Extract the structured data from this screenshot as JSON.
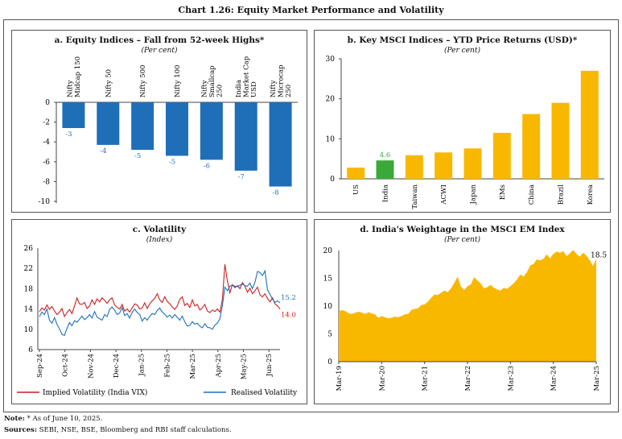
{
  "title": "Chart 1.26: Equity Market Performance and Volatility",
  "note": {
    "label": "Note:",
    "text": "* As of June 10, 2025."
  },
  "sources": {
    "label": "Sources:",
    "text": "SEBI, NSE, BSE, Bloomberg and RBI staff calculations."
  },
  "colors": {
    "blue": "#1f6fb8",
    "amber": "#f9b800",
    "green": "#3aa93a",
    "red": "#cc1f1f",
    "bluetext": "#1f6fb8"
  },
  "chart_data": [
    {
      "id": "a",
      "type": "bar",
      "title": "a. Equity Indices – Fall from 52-week Highs*",
      "subtitle": "(Per cent)",
      "categories": [
        [
          "Nifty",
          "Midcap 150"
        ],
        [
          "Nifty 50"
        ],
        [
          "Nifty 500"
        ],
        [
          "Nifty 100"
        ],
        [
          "Nifty",
          "Smallcap",
          "250"
        ],
        [
          "India",
          "Market Cap",
          "USD"
        ],
        [
          "Nifty",
          "Microcap",
          "250"
        ]
      ],
      "values": [
        -2.6,
        -4.3,
        -4.8,
        -5.4,
        -5.8,
        -6.9,
        -8.5
      ],
      "data_labels": [
        "-3",
        "-4",
        "-5",
        "-5",
        "-6",
        "-7",
        "-8"
      ],
      "yticks": [
        0,
        -2,
        -4,
        -6,
        -8,
        -10
      ],
      "ylim": [
        -10,
        0
      ]
    },
    {
      "id": "b",
      "type": "bar",
      "title": "b. Key MSCI Indices – YTD Price Returns (USD)*",
      "subtitle": "(Per cent)",
      "categories": [
        "US",
        "India",
        "Taiwan",
        "ACWI",
        "Japan",
        "EMs",
        "China",
        "Brazil",
        "Korea"
      ],
      "values": [
        2.8,
        4.6,
        5.9,
        6.6,
        7.6,
        11.5,
        16.2,
        19.0,
        27.0
      ],
      "highlight": "India",
      "highlight_label": "4.6",
      "yticks": [
        0,
        10,
        20,
        30
      ],
      "ylim": [
        0,
        30
      ]
    },
    {
      "id": "c",
      "type": "line",
      "title": "c. Volatility",
      "subtitle": "(Index)",
      "xticks": [
        "Sep-24",
        "Oct-24",
        "Nov-24",
        "Dec-24",
        "Jan-25",
        "Feb-25",
        "Mar-25",
        "Apr-25",
        "May-25",
        "Jun-25"
      ],
      "yticks": [
        6,
        10,
        14,
        18,
        22,
        26
      ],
      "ylim": [
        6,
        26
      ],
      "series": [
        {
          "name": "Implied Volatility (India VIX)",
          "end_label": "14.0",
          "values": [
            13.5,
            14.2,
            13.8,
            14.8,
            13.9,
            14.5,
            13.6,
            12.9,
            13.4,
            14.1,
            12.5,
            13.3,
            13.9,
            13.1,
            14.6,
            16.2,
            15.0,
            14.9,
            15.3,
            14.1,
            14.6,
            15.8,
            14.9,
            16.0,
            15.4,
            16.2,
            15.7,
            15.1,
            15.8,
            16.2,
            14.8,
            14.3,
            14.0,
            14.9,
            13.6,
            14.0,
            13.4,
            14.2,
            15.0,
            14.8,
            14.0,
            14.2,
            15.2,
            14.1,
            15.0,
            15.6,
            16.1,
            17.0,
            15.8,
            15.3,
            16.4,
            15.5,
            15.0,
            14.4,
            13.9,
            14.6,
            15.9,
            16.4,
            14.7,
            15.1,
            14.3,
            15.8,
            14.6,
            14.9,
            13.8,
            14.2,
            14.9,
            13.6,
            13.3,
            13.8,
            13.5,
            14.0,
            13.4,
            15.9,
            22.8,
            19.5,
            17.2,
            18.8,
            18.2,
            18.6,
            18.0,
            19.2,
            18.5,
            17.3,
            18.1,
            17.0,
            17.6,
            18.3,
            16.8,
            16.4,
            17.0,
            16.1,
            15.4,
            16.2,
            15.0,
            14.6,
            14.0
          ]
        },
        {
          "name": "Realised Volatility",
          "end_label": "15.2",
          "values": [
            12.5,
            13.4,
            12.9,
            14.0,
            11.8,
            11.2,
            12.3,
            11.0,
            10.1,
            9.0,
            8.8,
            10.2,
            11.3,
            10.7,
            11.7,
            11.4,
            12.0,
            12.6,
            11.9,
            12.3,
            12.9,
            12.2,
            13.5,
            12.4,
            12.1,
            11.8,
            12.9,
            12.5,
            13.9,
            14.4,
            13.8,
            12.9,
            13.2,
            14.3,
            12.7,
            13.1,
            12.2,
            13.3,
            14.0,
            13.3,
            12.9,
            11.6,
            12.3,
            11.8,
            12.5,
            13.1,
            12.9,
            13.7,
            14.2,
            13.4,
            13.0,
            12.4,
            12.8,
            12.2,
            12.9,
            12.4,
            11.8,
            12.6,
            11.5,
            10.6,
            10.8,
            11.5,
            11.0,
            11.2,
            10.6,
            10.3,
            11.1,
            10.4,
            10.3,
            10.0,
            10.8,
            11.2,
            12.1,
            14.7,
            18.3,
            17.6,
            18.5,
            18.7,
            18.5,
            18.4,
            18.7,
            18.9,
            18.6,
            18.5,
            19.1,
            18.0,
            19.3,
            21.4,
            21.2,
            20.6,
            21.5,
            17.8,
            16.9,
            15.9,
            15.3,
            15.6,
            15.2
          ]
        }
      ]
    },
    {
      "id": "d",
      "type": "area",
      "title": "d. India's Weightage in the MSCI EM Index",
      "subtitle": "(Per cent)",
      "xticks": [
        "Mar-19",
        "Mar-20",
        "Mar-21",
        "Mar-22",
        "Mar-23",
        "Mar-24",
        "Mar-25"
      ],
      "yticks": [
        0,
        5,
        10,
        15,
        20
      ],
      "ylim": [
        0,
        20
      ],
      "end_label": "18.5",
      "values": [
        9.0,
        9.3,
        9.1,
        8.7,
        8.6,
        8.8,
        9.0,
        8.8,
        8.6,
        8.9,
        8.7,
        8.5,
        7.9,
        8.2,
        8.0,
        7.8,
        7.9,
        8.1,
        8.0,
        8.2,
        8.5,
        8.6,
        9.3,
        9.5,
        9.6,
        10.2,
        10.3,
        10.8,
        11.5,
        12.1,
        12.0,
        12.4,
        12.8,
        12.5,
        13.2,
        14.2,
        15.3,
        13.5,
        12.9,
        13.6,
        13.9,
        15.2,
        14.6,
        14.1,
        13.2,
        13.4,
        13.8,
        13.3,
        13.0,
        12.8,
        13.3,
        13.1,
        13.6,
        14.1,
        14.8,
        15.7,
        15.3,
        16.1,
        17.3,
        17.6,
        18.4,
        18.2,
        18.5,
        19.3,
        18.6,
        19.4,
        19.8,
        19.6,
        19.9,
        19.0,
        19.5,
        20.1,
        19.4,
        18.9,
        19.6,
        19.1,
        18.3,
        17.2,
        18.5
      ]
    }
  ]
}
